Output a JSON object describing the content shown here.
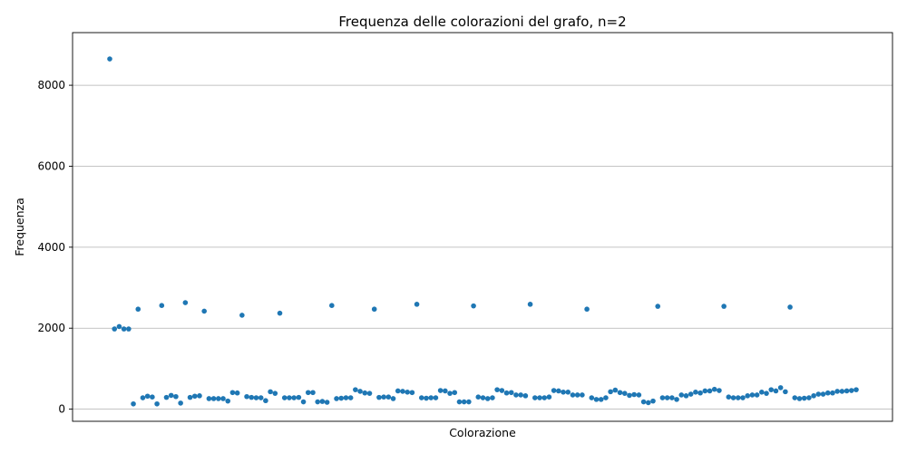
{
  "chart_data": {
    "type": "scatter",
    "title": "Frequenza delle colorazioni del grafo, n=2",
    "xlabel": "Colorazione",
    "ylabel": "Frequenza",
    "ylim": [
      -300,
      9300
    ],
    "yticks": [
      0,
      2000,
      4000,
      6000,
      8000
    ],
    "ytick_labels": [
      "0",
      "2000",
      "4000",
      "6000",
      "8000"
    ],
    "x_ticks_visible": false,
    "grid": "y-major",
    "color": "#1f77b4",
    "values": [
      8650,
      1980,
      2040,
      1980,
      1980,
      130,
      2470,
      280,
      320,
      300,
      130,
      2560,
      290,
      340,
      310,
      150,
      2630,
      290,
      320,
      330,
      2420,
      260,
      260,
      260,
      260,
      200,
      410,
      400,
      2320,
      310,
      290,
      280,
      280,
      210,
      430,
      390,
      2370,
      280,
      280,
      280,
      290,
      180,
      410,
      410,
      180,
      190,
      170,
      2560,
      260,
      270,
      280,
      280,
      480,
      440,
      400,
      390,
      2470,
      290,
      300,
      300,
      260,
      450,
      440,
      420,
      410,
      2590,
      280,
      270,
      280,
      280,
      460,
      450,
      390,
      410,
      180,
      180,
      180,
      2550,
      300,
      280,
      260,
      280,
      480,
      460,
      400,
      410,
      350,
      350,
      330,
      2590,
      280,
      280,
      280,
      300,
      460,
      450,
      420,
      420,
      350,
      350,
      350,
      2470,
      280,
      240,
      240,
      280,
      430,
      470,
      410,
      390,
      340,
      360,
      350,
      180,
      160,
      200,
      2540,
      280,
      280,
      280,
      240,
      350,
      330,
      370,
      420,
      400,
      450,
      450,
      490,
      460,
      2540,
      300,
      280,
      280,
      280,
      330,
      350,
      350,
      420,
      390,
      480,
      450,
      530,
      430,
      2520,
      280,
      260,
      270,
      280,
      330,
      370,
      370,
      400,
      400,
      440,
      440,
      450,
      460,
      480
    ]
  }
}
